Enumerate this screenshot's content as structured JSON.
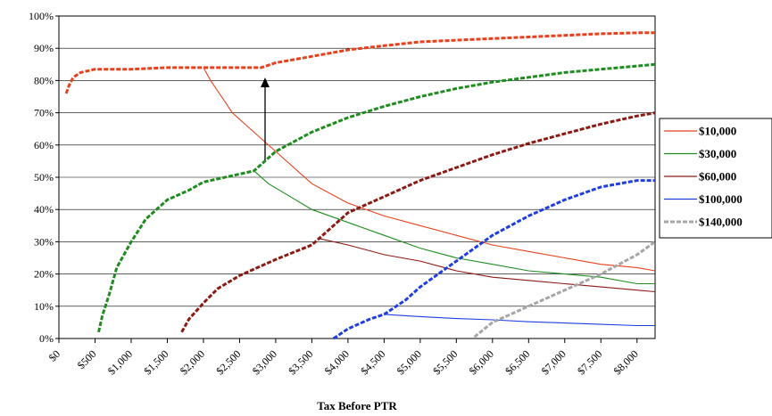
{
  "chart_data": {
    "type": "line",
    "title": "",
    "xlabel": "Tax Before PTR",
    "ylabel": "",
    "xlim": [
      0,
      8250
    ],
    "ylim": [
      0,
      100
    ],
    "y_ticks": [
      "0%",
      "10%",
      "20%",
      "30%",
      "40%",
      "50%",
      "60%",
      "70%",
      "80%",
      "90%",
      "100%"
    ],
    "x_ticks": [
      "$0",
      "$500",
      "$1,000",
      "$1,500",
      "$2,000",
      "$2,500",
      "$3,000",
      "$3,500",
      "$4,000",
      "$4,500",
      "$5,000",
      "$5,500",
      "$6,000",
      "$6,500",
      "$7,000",
      "$7,500",
      "$8,000"
    ],
    "grid": "horizontal",
    "legend_position": "right",
    "series": [
      {
        "name": "$10,000",
        "color": "#e8401c",
        "points_solid": [
          [
            2000,
            84
          ],
          [
            2100,
            80
          ],
          [
            2250,
            75
          ],
          [
            2400,
            70
          ],
          [
            2600,
            66
          ],
          [
            2800,
            62
          ],
          [
            3000,
            58
          ],
          [
            3500,
            48
          ],
          [
            4000,
            42
          ],
          [
            4500,
            38
          ],
          [
            5000,
            35
          ],
          [
            5500,
            32
          ],
          [
            6000,
            29
          ],
          [
            6500,
            27
          ],
          [
            7000,
            25
          ],
          [
            7500,
            23
          ],
          [
            8000,
            22
          ],
          [
            8250,
            21
          ]
        ],
        "points_dashed": [
          [
            100,
            76
          ],
          [
            150,
            79
          ],
          [
            200,
            81
          ],
          [
            300,
            82.5
          ],
          [
            500,
            83.5
          ],
          [
            1000,
            83.5
          ],
          [
            1500,
            84
          ],
          [
            2000,
            84
          ],
          [
            2500,
            84
          ],
          [
            2800,
            84
          ],
          [
            3000,
            85.5
          ],
          [
            3500,
            87.5
          ],
          [
            4000,
            89.5
          ],
          [
            4500,
            90.8
          ],
          [
            5000,
            92
          ],
          [
            5500,
            92.5
          ],
          [
            6000,
            93
          ],
          [
            6500,
            93.5
          ],
          [
            7000,
            94
          ],
          [
            7500,
            94.5
          ],
          [
            8000,
            94.8
          ],
          [
            8250,
            94.8
          ]
        ]
      },
      {
        "name": "$30,000",
        "color": "#1f8c1f",
        "points_solid": [
          [
            2700,
            52
          ],
          [
            2900,
            48
          ],
          [
            3200,
            44
          ],
          [
            3500,
            40
          ],
          [
            4000,
            36
          ],
          [
            4500,
            32
          ],
          [
            5000,
            28
          ],
          [
            5500,
            25
          ],
          [
            6000,
            23
          ],
          [
            6500,
            21
          ],
          [
            7000,
            20
          ],
          [
            7500,
            19
          ],
          [
            8000,
            17
          ],
          [
            8250,
            17
          ]
        ],
        "points_dashed": [
          [
            550,
            2
          ],
          [
            600,
            7
          ],
          [
            700,
            14
          ],
          [
            800,
            22
          ],
          [
            1000,
            30
          ],
          [
            1200,
            37
          ],
          [
            1500,
            43
          ],
          [
            1800,
            46
          ],
          [
            2000,
            48.5
          ],
          [
            2400,
            50.5
          ],
          [
            2700,
            52
          ],
          [
            3000,
            58
          ],
          [
            3500,
            64
          ],
          [
            4000,
            68.5
          ],
          [
            4500,
            72
          ],
          [
            5000,
            75
          ],
          [
            5500,
            77.5
          ],
          [
            6000,
            79.5
          ],
          [
            6500,
            81
          ],
          [
            7000,
            82.5
          ],
          [
            7500,
            83.5
          ],
          [
            8000,
            84.5
          ],
          [
            8250,
            85
          ]
        ]
      },
      {
        "name": "$60,000",
        "color": "#8c1a14",
        "points_solid": [
          [
            3600,
            31
          ],
          [
            4000,
            29
          ],
          [
            4500,
            26
          ],
          [
            5000,
            24
          ],
          [
            5500,
            21
          ],
          [
            6000,
            19
          ],
          [
            6500,
            18
          ],
          [
            7000,
            17
          ],
          [
            7500,
            16
          ],
          [
            8000,
            15
          ],
          [
            8250,
            14.5
          ]
        ],
        "points_dashed": [
          [
            1700,
            2
          ],
          [
            1800,
            6
          ],
          [
            2000,
            11
          ],
          [
            2200,
            15.5
          ],
          [
            2500,
            19.5
          ],
          [
            3000,
            24.5
          ],
          [
            3500,
            29
          ],
          [
            3800,
            35
          ],
          [
            4000,
            39
          ],
          [
            4500,
            44
          ],
          [
            5000,
            49
          ],
          [
            5500,
            53
          ],
          [
            6000,
            57
          ],
          [
            6500,
            60.5
          ],
          [
            7000,
            63.5
          ],
          [
            7500,
            66.5
          ],
          [
            8000,
            69
          ],
          [
            8250,
            70
          ]
        ]
      },
      {
        "name": "$100,000",
        "color": "#1f3ee0",
        "points_solid": [
          [
            4500,
            7.5
          ],
          [
            5000,
            6.8
          ],
          [
            5500,
            6.2
          ],
          [
            6000,
            5.8
          ],
          [
            6500,
            5.2
          ],
          [
            7000,
            4.8
          ],
          [
            7500,
            4.4
          ],
          [
            8000,
            4
          ],
          [
            8250,
            4
          ]
        ],
        "points_dashed": [
          [
            3800,
            0
          ],
          [
            4000,
            3
          ],
          [
            4300,
            6
          ],
          [
            4500,
            7.5
          ],
          [
            4800,
            12
          ],
          [
            5000,
            16
          ],
          [
            5500,
            24
          ],
          [
            6000,
            32
          ],
          [
            6500,
            38
          ],
          [
            7000,
            43
          ],
          [
            7500,
            47
          ],
          [
            8000,
            49
          ],
          [
            8250,
            49
          ]
        ]
      },
      {
        "name": "$140,000",
        "color": "#a6a6a6",
        "points_solid": [],
        "points_dashed": [
          [
            5750,
            0.5
          ],
          [
            6000,
            5
          ],
          [
            6500,
            10
          ],
          [
            7000,
            15
          ],
          [
            7500,
            20
          ],
          [
            8000,
            26
          ],
          [
            8250,
            30
          ]
        ]
      }
    ]
  }
}
